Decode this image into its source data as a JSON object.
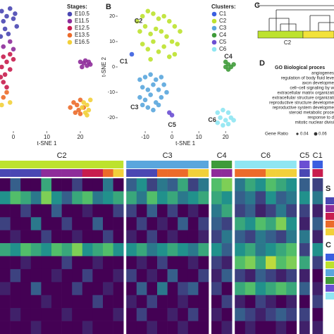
{
  "chart_data": [
    {
      "type": "scatter",
      "xlabel": "t-SNE 1",
      "xlim": [
        -4,
        26
      ],
      "xticks": [
        0,
        10,
        20
      ],
      "ylim": [
        -25,
        25
      ],
      "legend_title": "Stages:",
      "series": [
        {
          "name": "E10.5",
          "color": "#4a47b3",
          "x": [
            -3.5,
            -2,
            -1,
            -3,
            0,
            -2.5,
            1,
            -1.5,
            -3.8,
            0.5
          ],
          "y": [
            22,
            20,
            23,
            18,
            19,
            15,
            16,
            13,
            12,
            21
          ]
        },
        {
          "name": "E11.5",
          "color": "#8e2c9a",
          "x": [
            20,
            21,
            22,
            21.5,
            23,
            20.5,
            22.5,
            -1,
            -3,
            0
          ],
          "y": [
            2,
            1.5,
            0.5,
            2.5,
            1,
            0,
            2,
            10,
            8,
            7
          ]
        },
        {
          "name": "E12.5",
          "color": "#c81d4e",
          "x": [
            -3,
            -2,
            -1,
            -3.5,
            -2.5,
            -1,
            0,
            -3,
            -2,
            -3.8
          ],
          "y": [
            4,
            2,
            5,
            0,
            -3,
            -1,
            3,
            -6,
            -8,
            -4
          ]
        },
        {
          "name": "E13.5",
          "color": "#ec6b2a",
          "x": [
            18,
            19,
            20,
            19.5,
            21,
            18.5,
            -2,
            -3,
            17,
            20
          ],
          "y": [
            -14,
            -15,
            -13,
            -17,
            -16,
            -18,
            -10,
            -12,
            -16,
            -18.5
          ]
        },
        {
          "name": "E16.5",
          "color": "#f2d03a",
          "x": [
            21,
            22,
            22.5,
            21.5,
            20.5,
            23,
            22,
            -1,
            -3.5
          ],
          "y": [
            -14,
            -15,
            -17,
            -18,
            -16,
            -13,
            -19,
            -14,
            -15
          ]
        }
      ]
    },
    {
      "type": "scatter",
      "panel_label": "B",
      "xlabel": "t-SNE 1",
      "ylabel": "t-SNE 2",
      "xlim": [
        -20,
        26
      ],
      "xticks": [
        -10,
        0,
        10,
        20
      ],
      "ylim": [
        -25,
        25
      ],
      "yticks": [
        -20,
        -10,
        0,
        10,
        20
      ],
      "legend_title": "Clusters:",
      "series": [
        {
          "name": "C1",
          "color": "#3a5fe0",
          "x": [
            -15
          ],
          "y": [
            5
          ]
        },
        {
          "name": "C2",
          "color": "#bde22e",
          "x": [
            -13,
            -11,
            -9,
            -7,
            -5,
            -3,
            -1,
            1,
            3,
            -12,
            -10,
            -8,
            -6,
            -4,
            -2,
            0,
            2,
            -11,
            -9,
            -7,
            -5,
            -3,
            -1,
            1,
            -8
          ],
          "y": [
            18,
            20,
            22,
            21,
            19,
            20,
            18,
            16,
            14,
            14,
            16,
            13,
            15,
            14,
            12,
            10,
            9,
            9,
            7,
            10,
            6,
            8,
            4,
            5,
            3
          ]
        },
        {
          "name": "C3",
          "color": "#5aa6dd",
          "x": [
            -12,
            -10,
            -8,
            -6,
            -4,
            -11,
            -9,
            -7,
            -5,
            -3,
            -12,
            -10,
            -8,
            -6,
            -4,
            -9,
            -7,
            -5,
            -2,
            -11
          ],
          "y": [
            -5,
            -4,
            -3,
            -5,
            -4,
            -8,
            -9,
            -7,
            -9,
            -7,
            -12,
            -13,
            -11,
            -14,
            -12,
            -16,
            -17,
            -15,
            -10,
            -15
          ]
        },
        {
          "name": "C4",
          "color": "#3f9b3a",
          "x": [
            20,
            21,
            22,
            21,
            23,
            20
          ],
          "y": [
            2,
            1,
            0,
            -1,
            1,
            0
          ]
        },
        {
          "name": "C5",
          "color": "#6b4fd3",
          "x": [
            -1,
            0
          ],
          "y": [
            -18,
            -19
          ]
        },
        {
          "name": "C6",
          "color": "#8fe6f2",
          "x": [
            17,
            19,
            21,
            18,
            20,
            22,
            17,
            19,
            21,
            23
          ],
          "y": [
            -18,
            -17,
            -18,
            -20,
            -21,
            -20,
            -22,
            -23,
            -22.5,
            -21
          ]
        }
      ],
      "annotations": [
        {
          "text": "C2",
          "x": -12.5,
          "y": 18
        },
        {
          "text": "C1",
          "x": -18,
          "y": 2
        },
        {
          "text": "C3",
          "x": -14,
          "y": -16
        },
        {
          "text": "C5",
          "x": 0,
          "y": -23
        },
        {
          "text": "C4",
          "x": 21,
          "y": 4
        },
        {
          "text": "C6",
          "x": 15,
          "y": -21
        }
      ]
    }
  ],
  "panel_c": {
    "label": "C",
    "cluster_label": "C2"
  },
  "panel_d": {
    "label": "D",
    "title": "GO Biological proces",
    "terms": [
      "angiogenes",
      "regulation of body fluid leve",
      "axon developme",
      "cell–cell signaling by w",
      "extracellular matrix organizati",
      "extracellular structure organizati",
      "reproductive structure developme",
      "reproductive system developme",
      "steroid metabolic proce",
      "response to d",
      "mitotic nuclear divisi"
    ],
    "size_legend_title": "Gene Ratio",
    "size_legend": [
      0.04,
      0.06
    ]
  },
  "heatmap": {
    "legend_titles": [
      "S",
      "C"
    ],
    "groups": [
      {
        "cluster": "C2",
        "stages": [
          "E10.5",
          "E10.5",
          "E10.5",
          "E10.5",
          "E11.5",
          "E11.5",
          "E11.5",
          "E11.5",
          "E12.5",
          "E12.5",
          "E13.5",
          "E16.5"
        ],
        "values": [
          [
            0,
            0.3,
            0,
            0,
            0.6,
            0,
            0,
            0.2,
            0,
            0,
            0.4,
            0
          ],
          [
            0.5,
            0.7,
            0.6,
            0.4,
            0.8,
            0.5,
            0.3,
            0.6,
            0.7,
            0.4,
            0.5,
            0.6
          ],
          [
            0,
            0,
            0.2,
            0,
            0,
            0.3,
            0,
            0,
            0.1,
            0,
            0,
            0.2
          ],
          [
            0.2,
            0,
            0,
            0.4,
            0,
            0,
            0.2,
            0,
            0,
            0.3,
            0,
            0
          ],
          [
            0,
            0.1,
            0,
            0,
            0.2,
            0,
            0,
            0.1,
            0,
            0,
            0.2,
            0
          ],
          [
            0.6,
            0.5,
            0.7,
            0.6,
            0.5,
            0.7,
            0.6,
            0.8,
            0.5,
            0.6,
            0.7,
            0.5
          ],
          [
            0,
            0,
            0.1,
            0,
            0,
            0,
            0.2,
            0,
            0,
            0.1,
            0,
            0
          ],
          [
            0,
            0.2,
            0,
            0,
            0,
            0.1,
            0,
            0,
            0.2,
            0,
            0,
            0.1
          ],
          [
            0.1,
            0,
            0,
            0.3,
            0,
            0,
            0,
            0.2,
            0,
            0,
            0.1,
            0
          ],
          [
            0,
            0,
            0,
            0,
            0.1,
            0,
            0,
            0,
            0,
            0.2,
            0,
            0
          ],
          [
            0,
            0.1,
            0,
            0,
            0,
            0,
            0.1,
            0,
            0,
            0,
            0,
            0.1
          ],
          [
            0,
            0,
            0,
            0.1,
            0,
            0,
            0,
            0,
            0.1,
            0,
            0,
            0
          ]
        ]
      },
      {
        "cluster": "C3",
        "stages": [
          "E10.5",
          "E10.5",
          "E10.5",
          "E13.5",
          "E13.5",
          "E13.5",
          "E16.5",
          "E16.5"
        ],
        "values": [
          [
            0.3,
            0.5,
            0.2,
            0.4,
            0.3,
            0.6,
            0.2,
            0.4
          ],
          [
            0.6,
            0.4,
            0.7,
            0.5,
            0.6,
            0.4,
            0.5,
            0.6
          ],
          [
            0.2,
            0,
            0.3,
            0,
            0.2,
            0,
            0.1,
            0
          ],
          [
            0,
            0.2,
            0,
            0.1,
            0,
            0.3,
            0,
            0.2
          ],
          [
            0.1,
            0,
            0.2,
            0,
            0.1,
            0,
            0,
            0.1
          ],
          [
            0.5,
            0.6,
            0.4,
            0.5,
            0.6,
            0.5,
            0.4,
            0.6
          ],
          [
            0,
            0.1,
            0,
            0.2,
            0,
            0,
            0.1,
            0
          ],
          [
            0.2,
            0,
            0.1,
            0,
            0.3,
            0,
            0,
            0.2
          ],
          [
            0,
            0.3,
            0,
            0.4,
            0,
            0.2,
            0.3,
            0
          ],
          [
            0.1,
            0,
            0.2,
            0,
            0,
            0.1,
            0,
            0
          ],
          [
            0,
            0.2,
            0,
            0,
            0.1,
            0,
            0.2,
            0
          ],
          [
            0,
            0,
            0.1,
            0,
            0,
            0.1,
            0,
            0
          ]
        ]
      },
      {
        "cluster": "C4",
        "stages": [
          "E11.5",
          "E11.5"
        ],
        "values": [
          [
            0.7,
            0.8
          ],
          [
            0.6,
            0.5
          ],
          [
            0.4,
            0.6
          ],
          [
            0.3,
            0.2
          ],
          [
            0.2,
            0.4
          ],
          [
            0.5,
            0.3
          ],
          [
            0.2,
            0.1
          ],
          [
            0.1,
            0.3
          ],
          [
            0.2,
            0
          ],
          [
            0,
            0.2
          ],
          [
            0.1,
            0
          ],
          [
            0,
            0.1
          ]
        ]
      },
      {
        "cluster": "C6",
        "stages": [
          "E13.5",
          "E13.5",
          "E13.5",
          "E16.5",
          "E16.5",
          "E16.5"
        ],
        "values": [
          [
            0.4,
            0.6,
            0.5,
            0.7,
            0.6,
            0.5
          ],
          [
            0.3,
            0.4,
            0.2,
            0.5,
            0.3,
            0.4
          ],
          [
            0.2,
            0.3,
            0.1,
            0.2,
            0.4,
            0.2
          ],
          [
            0.6,
            0.5,
            0.7,
            0.6,
            0.8,
            0.5
          ],
          [
            0.3,
            0.2,
            0.4,
            0.3,
            0.2,
            0.4
          ],
          [
            0.5,
            0.6,
            0.4,
            0.5,
            0.6,
            0.7
          ],
          [
            0.7,
            0.8,
            0.6,
            0.9,
            0.7,
            0.8
          ],
          [
            0.2,
            0.1,
            0.3,
            0.2,
            0.1,
            0.2
          ],
          [
            0.6,
            0.7,
            0.5,
            0.6,
            0.7,
            0.6
          ],
          [
            0.1,
            0,
            0.2,
            0.1,
            0,
            0.1
          ],
          [
            0.3,
            0.2,
            0.1,
            0.2,
            0.3,
            0.2
          ],
          [
            0,
            0.1,
            0,
            0,
            0.1,
            0
          ]
        ]
      },
      {
        "cluster": "C5",
        "stages": [
          "E10.5"
        ],
        "values": [
          [
            0.3
          ],
          [
            0.5
          ],
          [
            0.2
          ],
          [
            0.1
          ],
          [
            0.4
          ],
          [
            0.2
          ],
          [
            0.6
          ],
          [
            0.1
          ],
          [
            0.3
          ],
          [
            0
          ],
          [
            0.2
          ],
          [
            0.1
          ]
        ]
      },
      {
        "cluster": "C1",
        "stages": [
          "E12.5"
        ],
        "values": [
          [
            0.2
          ],
          [
            0.4
          ],
          [
            0.1
          ],
          [
            0.3
          ],
          [
            0.1
          ],
          [
            0.5
          ],
          [
            0.2
          ],
          [
            0
          ],
          [
            0.1
          ],
          [
            0.2
          ],
          [
            0
          ],
          [
            0.1
          ]
        ]
      }
    ]
  }
}
